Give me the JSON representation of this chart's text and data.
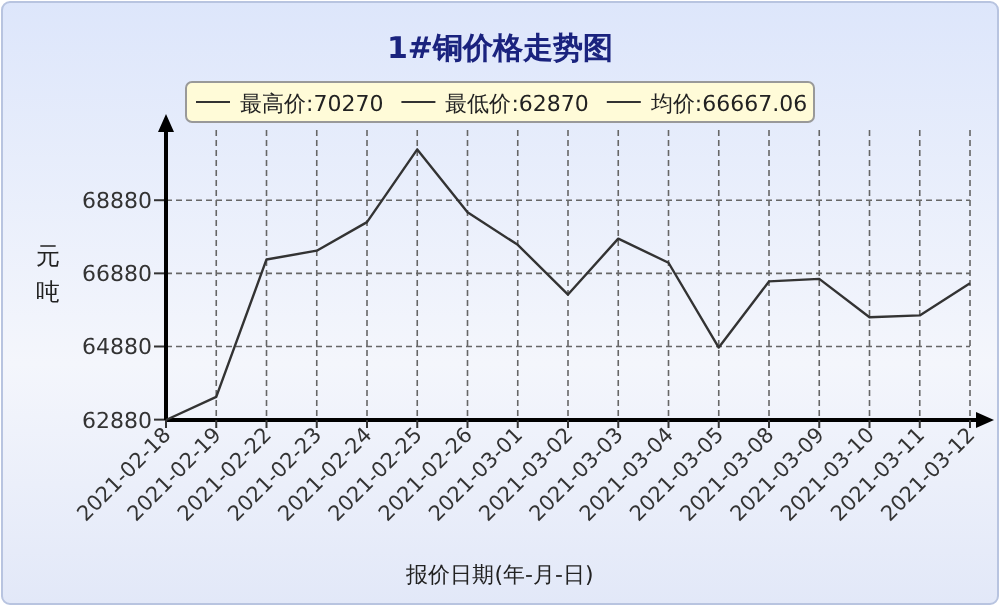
{
  "chart_data": {
    "type": "line",
    "title": "1#铜价格走势图",
    "xlabel": "报价日期(年-月-日)",
    "ylabel": "元吨",
    "annotations": [
      "最高价:70270",
      "最低价:62870",
      "均价:66667.06"
    ],
    "categories": [
      "2021-02-18",
      "2021-02-19",
      "2021-02-22",
      "2021-02-23",
      "2021-02-24",
      "2021-02-25",
      "2021-02-26",
      "2021-03-01",
      "2021-03-02",
      "2021-03-03",
      "2021-03-04",
      "2021-03-05",
      "2021-03-08",
      "2021-03-09",
      "2021-03-10",
      "2021-03-11",
      "2021-03-12"
    ],
    "values": [
      62870,
      63500,
      67260,
      67500,
      68280,
      70270,
      68550,
      67660,
      66300,
      67830,
      67170,
      64850,
      66660,
      66730,
      65680,
      65730,
      66610
    ],
    "color": "#333333",
    "ylim": [
      62870,
      70800
    ],
    "yticks": [
      62880,
      64880,
      66880,
      68880
    ],
    "grid": true,
    "line_style": "solid"
  }
}
